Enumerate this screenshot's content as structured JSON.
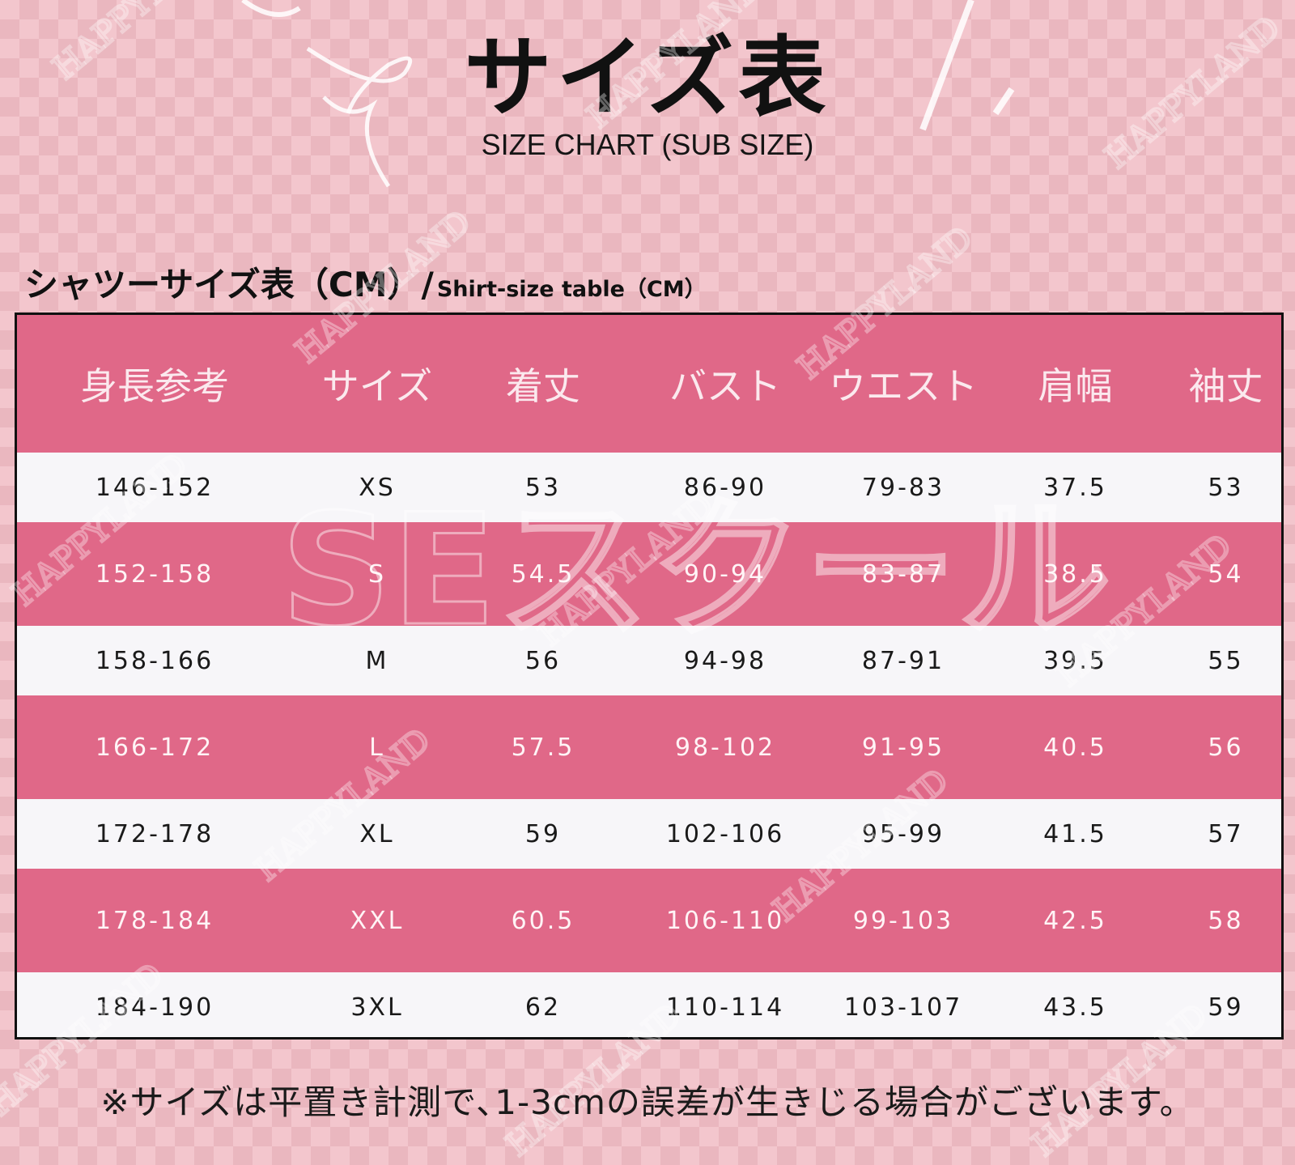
{
  "title": "サイズ表",
  "subtitle": "SIZE CHART (SUB SIZE)",
  "heading": {
    "ja": "シャツーサイズ表（CM）/",
    "en": "Shirt-size table（CM）"
  },
  "table": {
    "headers": [
      "身長参考",
      "サイズ",
      "着丈",
      "バスト",
      "ウエスト",
      "肩幅",
      "袖丈"
    ],
    "rows": [
      [
        "146-152",
        "XS",
        "53",
        "86-90",
        "79-83",
        "37.5",
        "53"
      ],
      [
        "152-158",
        "S",
        "54.5",
        "90-94",
        "83-87",
        "38.5",
        "54"
      ],
      [
        "158-166",
        "M",
        "56",
        "94-98",
        "87-91",
        "39.5",
        "55"
      ],
      [
        "166-172",
        "L",
        "57.5",
        "98-102",
        "91-95",
        "40.5",
        "56"
      ],
      [
        "172-178",
        "XL",
        "59",
        "102-106",
        "95-99",
        "41.5",
        "57"
      ],
      [
        "178-184",
        "XXL",
        "60.5",
        "106-110",
        "99-103",
        "42.5",
        "58"
      ],
      [
        "184-190",
        "3XL",
        "62",
        "110-114",
        "103-107",
        "43.5",
        "59"
      ]
    ]
  },
  "footnote": "※サイズは平置き計測で､1-3cmの誤差が生きじる場合がございます。",
  "watermarks": {
    "brand": "HAPPYLAND",
    "center": "SEスクール"
  },
  "colors": {
    "header_pink": "#e06888",
    "row_white": "#f7f6f9",
    "background_pink": "#f3c6cd"
  }
}
